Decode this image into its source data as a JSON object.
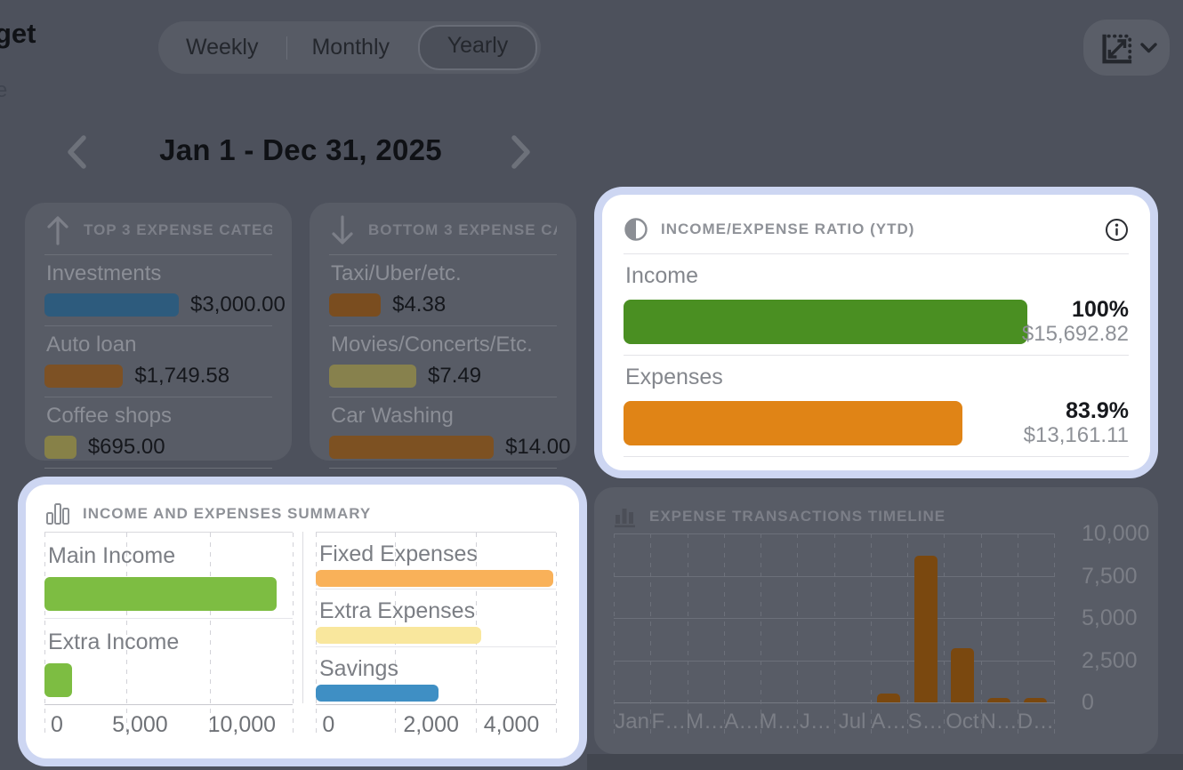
{
  "app": {
    "partial_logo_text": "get",
    "partial_left_text": "e"
  },
  "period_selector": {
    "options": [
      "Weekly",
      "Monthly",
      "Yearly"
    ],
    "selected": "Yearly",
    "selected_index": 2
  },
  "date_navigator": {
    "range_label": "Jan 1 - Dec 31, 2025"
  },
  "colors": {
    "page_dim_background": "#4d515c",
    "dim_card_background": "#585c66",
    "spotlight_glow": "#cdd6f2",
    "card_background": "#ffffff",
    "income_green": "#4a8f22",
    "expense_orange": "#e08416",
    "main_income_green": "#7dbd42",
    "fixed_expenses_orange": "#f9b159",
    "extra_expenses_yellow": "#f9e79d",
    "savings_blue": "#3f8fc4",
    "timeline_bar_brown": "#7a480f"
  },
  "cards": {
    "top_expenses": {
      "icon": "arrow-up-icon",
      "title": "TOP 3 EXPENSE CATEG…",
      "rows": [
        {
          "label": "Investments",
          "value": "$3,000.00",
          "bar_pct": 59,
          "color": "#2d5b7d"
        },
        {
          "label": "Auto loan",
          "value": "$1,749.58",
          "bar_pct": 34.5,
          "color": "#7d5124"
        },
        {
          "label": "Coffee shops",
          "value": "$695.00",
          "bar_pct": 14,
          "color": "#878148"
        }
      ]
    },
    "bottom_expenses": {
      "icon": "arrow-down-icon",
      "title": "BOTTOM 3 EXPENSE CA…",
      "rows": [
        {
          "label": "Taxi/Uber/etc.",
          "value": "$4.38",
          "bar_pct": 22.7,
          "color": "#7a4d1f"
        },
        {
          "label": "Movies/Concerts/Etc.",
          "value": "$7.49",
          "bar_pct": 38.3,
          "color": "#87814d"
        },
        {
          "label": "Car Washing",
          "value": "$14.00",
          "bar_pct": 72.3,
          "color": "#7d5122"
        }
      ]
    },
    "income_expense_ratio": {
      "icon": "contrast-half-circle-icon",
      "info_icon": "info-icon",
      "title": "INCOME/EXPENSE RATIO (YTD)",
      "rows": [
        {
          "label": "Income",
          "percent": "100%",
          "amount": "$15,692.82",
          "bar_pct": 80,
          "color": "#4a8f22"
        },
        {
          "label": "Expenses",
          "percent": "83.9%",
          "amount": "$13,161.11",
          "bar_pct": 67,
          "color": "#e08416"
        }
      ]
    },
    "income_expenses_summary": {
      "icon": "bar-chart-outline-icon",
      "title": "INCOME AND EXPENSES SUMMARY",
      "left_chart": {
        "rows": [
          {
            "label": "Main Income",
            "bar_pct": 93.5,
            "color": "#7dbd42"
          },
          {
            "label": "Extra Income",
            "bar_pct": 11,
            "color": "#7dbd42"
          }
        ],
        "gridlines_pct": [
          0,
          33.3,
          66.7,
          100
        ],
        "ticks": [
          {
            "label": "0",
            "x_pct": 5
          },
          {
            "label": "5,000",
            "x_pct": 38.5
          },
          {
            "label": "10,000",
            "x_pct": 79.5
          }
        ]
      },
      "right_chart": {
        "rows": [
          {
            "label": "Fixed Expenses",
            "bar_pct": 99,
            "color": "#f9b159"
          },
          {
            "label": "Extra Expenses",
            "bar_pct": 69,
            "color": "#f9e79d"
          },
          {
            "label": "Savings",
            "bar_pct": 51,
            "color": "#3f8fc4"
          }
        ],
        "gridlines_pct": [
          0,
          33.3,
          66.7,
          100
        ],
        "ticks": [
          {
            "label": "0",
            "x_pct": 5.3
          },
          {
            "label": "2,000",
            "x_pct": 48
          },
          {
            "label": "4,000",
            "x_pct": 81.5
          }
        ]
      }
    },
    "expense_timeline": {
      "icon": "bar-chart-filled-icon",
      "title": "EXPENSE TRANSACTIONS TIMELINE",
      "y_ticks": [
        "10,000",
        "7,500",
        "5,000",
        "2,500",
        "0"
      ],
      "y_max": 10000,
      "x_labels": [
        "Jan",
        "F…",
        "M…",
        "A…",
        "M…",
        "J…",
        "Jul",
        "A…",
        "S…",
        "Oct",
        "N…",
        "D…"
      ],
      "values": [
        0,
        0,
        0,
        0,
        0,
        0,
        0,
        550,
        8700,
        3200,
        250,
        250
      ],
      "bar_color": "#7a480f"
    }
  },
  "chart_data": [
    {
      "id": "top-3-expense-categories",
      "type": "bar",
      "orientation": "horizontal",
      "title": "TOP 3 EXPENSE CATEG…",
      "categories": [
        "Investments",
        "Auto loan",
        "Coffee shops"
      ],
      "values": [
        3000.0,
        1749.58,
        695.0
      ],
      "value_labels": [
        "$3,000.00",
        "$1,749.58",
        "$695.00"
      ]
    },
    {
      "id": "bottom-3-expense-categories",
      "type": "bar",
      "orientation": "horizontal",
      "title": "BOTTOM 3 EXPENSE CA…",
      "categories": [
        "Taxi/Uber/etc.",
        "Movies/Concerts/Etc.",
        "Car Washing"
      ],
      "values": [
        4.38,
        7.49,
        14.0
      ],
      "value_labels": [
        "$4.38",
        "$7.49",
        "$14.00"
      ]
    },
    {
      "id": "income-expense-ratio-ytd",
      "type": "bar",
      "orientation": "horizontal",
      "title": "INCOME/EXPENSE RATIO (YTD)",
      "categories": [
        "Income",
        "Expenses"
      ],
      "values": [
        15692.82,
        13161.11
      ],
      "percents": [
        100,
        83.9
      ]
    },
    {
      "id": "income-summary",
      "type": "bar",
      "orientation": "horizontal",
      "title": "INCOME AND EXPENSES SUMMARY (income)",
      "categories": [
        "Main Income",
        "Extra Income"
      ],
      "values": [
        14000,
        1650
      ],
      "xlim": [
        0,
        15000
      ],
      "xticks": [
        0,
        5000,
        10000
      ],
      "grid": true,
      "note": "values estimated from bar lengths"
    },
    {
      "id": "expenses-summary",
      "type": "bar",
      "orientation": "horizontal",
      "title": "INCOME AND EXPENSES SUMMARY (expenses)",
      "categories": [
        "Fixed Expenses",
        "Extra Expenses",
        "Savings"
      ],
      "values": [
        6000,
        4150,
        3050
      ],
      "xlim": [
        0,
        6000
      ],
      "xticks": [
        0,
        2000,
        4000
      ],
      "grid": true,
      "note": "values estimated from bar lengths"
    },
    {
      "id": "expense-transactions-timeline",
      "type": "bar",
      "title": "EXPENSE TRANSACTIONS TIMELINE",
      "categories": [
        "Jan",
        "Feb",
        "Mar",
        "Apr",
        "May",
        "Jun",
        "Jul",
        "Aug",
        "Sep",
        "Oct",
        "Nov",
        "Dec"
      ],
      "values": [
        0,
        0,
        0,
        0,
        0,
        0,
        0,
        550,
        8700,
        3200,
        250,
        250
      ],
      "ylim": [
        0,
        10000
      ],
      "yticks": [
        0,
        2500,
        5000,
        7500,
        10000
      ],
      "grid": true,
      "note": "values estimated from bar heights"
    }
  ]
}
